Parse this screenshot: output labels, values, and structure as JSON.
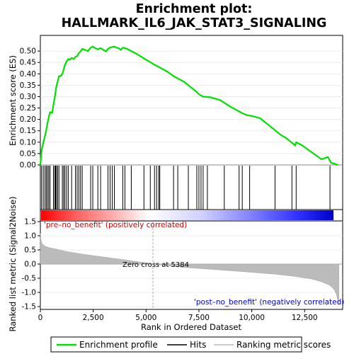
{
  "title_line1": "Enrichment plot:",
  "title_line2": "HALLMARK_IL6_JAK_STAT3_SIGNALING",
  "colors": {
    "enrichment_line": "#00e000",
    "hits": "#000000",
    "metric_fill": "#bbbbbb",
    "positive_label": "#cc0000",
    "negative_label": "#0000cc"
  },
  "legend": {
    "enrichment_profile": "Enrichment profile",
    "hits": "Hits",
    "ranking_metric_scores": "Ranking metric scores"
  },
  "chart_data": [
    {
      "type": "line",
      "name": "enrichment-score-panel",
      "ylabel": "Enrichment score (ES)",
      "xlim": [
        0,
        14300
      ],
      "ylim": [
        0.0,
        0.55
      ],
      "yticks": [
        "0.00",
        "0.05",
        "0.10",
        "0.15",
        "0.20",
        "0.25",
        "0.30",
        "0.35",
        "0.40",
        "0.45",
        "0.50"
      ],
      "grid": true,
      "points": [
        [
          0,
          0.0
        ],
        [
          60,
          0.065
        ],
        [
          140,
          0.098
        ],
        [
          220,
          0.128
        ],
        [
          280,
          0.155
        ],
        [
          340,
          0.185
        ],
        [
          400,
          0.21
        ],
        [
          460,
          0.232
        ],
        [
          560,
          0.228
        ],
        [
          620,
          0.265
        ],
        [
          680,
          0.295
        ],
        [
          720,
          0.322
        ],
        [
          760,
          0.345
        ],
        [
          820,
          0.368
        ],
        [
          880,
          0.39
        ],
        [
          960,
          0.39
        ],
        [
          1040,
          0.4
        ],
        [
          1100,
          0.418
        ],
        [
          1160,
          0.438
        ],
        [
          1240,
          0.455
        ],
        [
          1320,
          0.465
        ],
        [
          1400,
          0.462
        ],
        [
          1480,
          0.47
        ],
        [
          1580,
          0.465
        ],
        [
          1660,
          0.475
        ],
        [
          1740,
          0.478
        ],
        [
          1820,
          0.49
        ],
        [
          1900,
          0.498
        ],
        [
          1980,
          0.51
        ],
        [
          2100,
          0.505
        ],
        [
          2250,
          0.5
        ],
        [
          2380,
          0.515
        ],
        [
          2480,
          0.52
        ],
        [
          2600,
          0.512
        ],
        [
          2720,
          0.507
        ],
        [
          2850,
          0.513
        ],
        [
          2980,
          0.505
        ],
        [
          3100,
          0.498
        ],
        [
          3200,
          0.51
        ],
        [
          3300,
          0.515
        ],
        [
          3400,
          0.518
        ],
        [
          3500,
          0.52
        ],
        [
          3600,
          0.515
        ],
        [
          3700,
          0.513
        ],
        [
          3800,
          0.505
        ],
        [
          3900,
          0.515
        ],
        [
          4000,
          0.513
        ],
        [
          4100,
          0.51
        ],
        [
          4300,
          0.5
        ],
        [
          4600,
          0.485
        ],
        [
          5000,
          0.462
        ],
        [
          5400,
          0.44
        ],
        [
          5500,
          0.435
        ],
        [
          5600,
          0.43
        ],
        [
          6000,
          0.41
        ],
        [
          6300,
          0.39
        ],
        [
          6800,
          0.365
        ],
        [
          7200,
          0.335
        ],
        [
          7400,
          0.32
        ],
        [
          7500,
          0.31
        ],
        [
          7600,
          0.305
        ],
        [
          7700,
          0.3
        ],
        [
          8000,
          0.298
        ],
        [
          8500,
          0.285
        ],
        [
          9000,
          0.255
        ],
        [
          9200,
          0.245
        ],
        [
          9400,
          0.235
        ],
        [
          9600,
          0.225
        ],
        [
          9800,
          0.218
        ],
        [
          10000,
          0.215
        ],
        [
          10200,
          0.21
        ],
        [
          10400,
          0.205
        ],
        [
          10600,
          0.19
        ],
        [
          10800,
          0.175
        ],
        [
          11000,
          0.16
        ],
        [
          11200,
          0.145
        ],
        [
          11400,
          0.13
        ],
        [
          11600,
          0.12
        ],
        [
          11800,
          0.105
        ],
        [
          12000,
          0.09
        ],
        [
          12050,
          0.085
        ],
        [
          12100,
          0.1
        ],
        [
          12400,
          0.085
        ],
        [
          12700,
          0.065
        ],
        [
          13000,
          0.045
        ],
        [
          13300,
          0.025
        ],
        [
          13600,
          0.035
        ],
        [
          13750,
          0.01
        ],
        [
          14100,
          0.0
        ]
      ]
    },
    {
      "type": "scatter",
      "name": "hits-panel",
      "hit_ranks": [
        60,
        140,
        220,
        280,
        340,
        400,
        460,
        620,
        680,
        720,
        760,
        820,
        880,
        1040,
        1100,
        1160,
        1240,
        1320,
        1480,
        1660,
        1740,
        1820,
        1900,
        1980,
        2380,
        2480,
        2720,
        2850,
        3200,
        3300,
        3400,
        3500,
        3900,
        4000,
        4300,
        4900,
        5200,
        5400,
        5500,
        5600,
        5650,
        6300,
        6500,
        7000,
        7400,
        7500,
        7600,
        7700,
        7900,
        8700,
        9400,
        9550,
        9900,
        11100,
        11900,
        12100,
        13700
      ]
    },
    {
      "type": "area",
      "name": "ranked-list-metric-panel",
      "ylabel": "Ranked list metric (Signal2Noise)",
      "xlabel": "Rank in Ordered Dataset",
      "xlim": [
        0,
        14300
      ],
      "ylim": [
        -1.5,
        1.5
      ],
      "yticks": [
        "-1.5",
        "-1.0",
        "-0.5",
        "0.0",
        "0.5",
        "1.0",
        "1.5"
      ],
      "xticks": [
        "0",
        "2,500",
        "5,000",
        "7,500",
        "10,000",
        "12,500"
      ],
      "grid": true,
      "points": [
        [
          0,
          1.08
        ],
        [
          30,
          0.85
        ],
        [
          80,
          0.72
        ],
        [
          200,
          0.64
        ],
        [
          400,
          0.58
        ],
        [
          800,
          0.52
        ],
        [
          1200,
          0.45
        ],
        [
          2000,
          0.35
        ],
        [
          3000,
          0.25
        ],
        [
          4000,
          0.15
        ],
        [
          5384,
          0.0
        ],
        [
          6500,
          -0.1
        ],
        [
          8000,
          -0.18
        ],
        [
          9500,
          -0.26
        ],
        [
          11000,
          -0.35
        ],
        [
          12000,
          -0.43
        ],
        [
          12800,
          -0.52
        ],
        [
          13300,
          -0.62
        ],
        [
          13700,
          -0.75
        ],
        [
          13900,
          -0.9
        ],
        [
          14000,
          -1.05
        ],
        [
          14080,
          -1.3
        ],
        [
          14120,
          -1.45
        ]
      ],
      "zero_cross_label": "Zero cross at 5384",
      "positive_label": "'pre–no_benefit' (positively correlated)",
      "negative_label": "'post–no_benefit' (negatively correlated)"
    }
  ]
}
